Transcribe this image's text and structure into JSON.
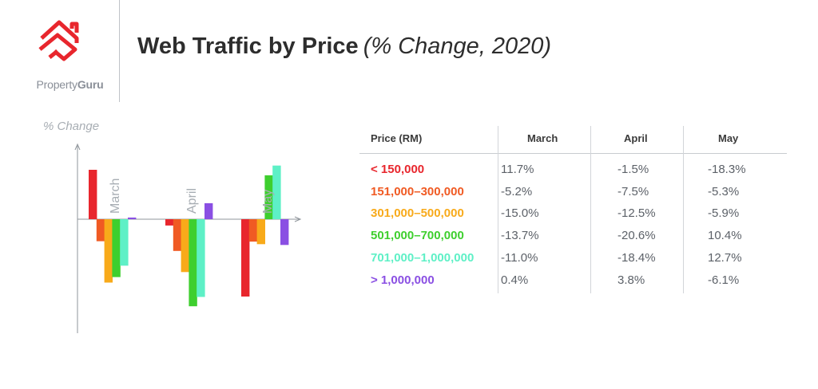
{
  "brand": {
    "name_light": "Property",
    "name_bold": "Guru",
    "accent": "#e8262d"
  },
  "title": {
    "main": "Web Traffic by Price",
    "sub": "(% Change, 2020)"
  },
  "chart_data": {
    "type": "bar",
    "ylabel": "% Change",
    "categories": [
      "March",
      "April",
      "May"
    ],
    "series": [
      {
        "name": "< 150,000",
        "color": "#e8262d",
        "values": [
          11.7,
          -1.5,
          -18.3
        ]
      },
      {
        "name": "151,000–300,000",
        "color": "#f05a23",
        "values": [
          -5.2,
          -7.5,
          -5.3
        ]
      },
      {
        "name": "301,000–500,000",
        "color": "#f8aa1a",
        "values": [
          -15.0,
          -12.5,
          -5.9
        ]
      },
      {
        "name": "501,000–700,000",
        "color": "#3ecf2e",
        "values": [
          -13.7,
          -20.6,
          10.4
        ]
      },
      {
        "name": "701,000–1,000,000",
        "color": "#5ef0c6",
        "values": [
          -11.0,
          -18.4,
          12.7
        ]
      },
      {
        "name": "> 1,000,000",
        "color": "#8a4fe3",
        "values": [
          0.4,
          3.8,
          -6.1
        ]
      }
    ],
    "ylim": [
      -24,
      16
    ],
    "grid": false
  },
  "table": {
    "header": [
      "Price (RM)",
      "March",
      "April",
      "May"
    ],
    "rows": [
      {
        "label": "< 150,000",
        "values": [
          "11.7%",
          "-1.5%",
          "-18.3%"
        ]
      },
      {
        "label": "151,000–300,000",
        "values": [
          "-5.2%",
          "-7.5%",
          "-5.3%"
        ]
      },
      {
        "label": "301,000–500,000",
        "values": [
          "-15.0%",
          "-12.5%",
          "-5.9%"
        ]
      },
      {
        "label": "501,000–700,000",
        "values": [
          "-13.7%",
          "-20.6%",
          "10.4%"
        ]
      },
      {
        "label": "701,000–1,000,000",
        "values": [
          "-11.0%",
          "-18.4%",
          "12.7%"
        ]
      },
      {
        "label": "> 1,000,000",
        "values": [
          "0.4%",
          "3.8%",
          "-6.1%"
        ]
      }
    ]
  }
}
